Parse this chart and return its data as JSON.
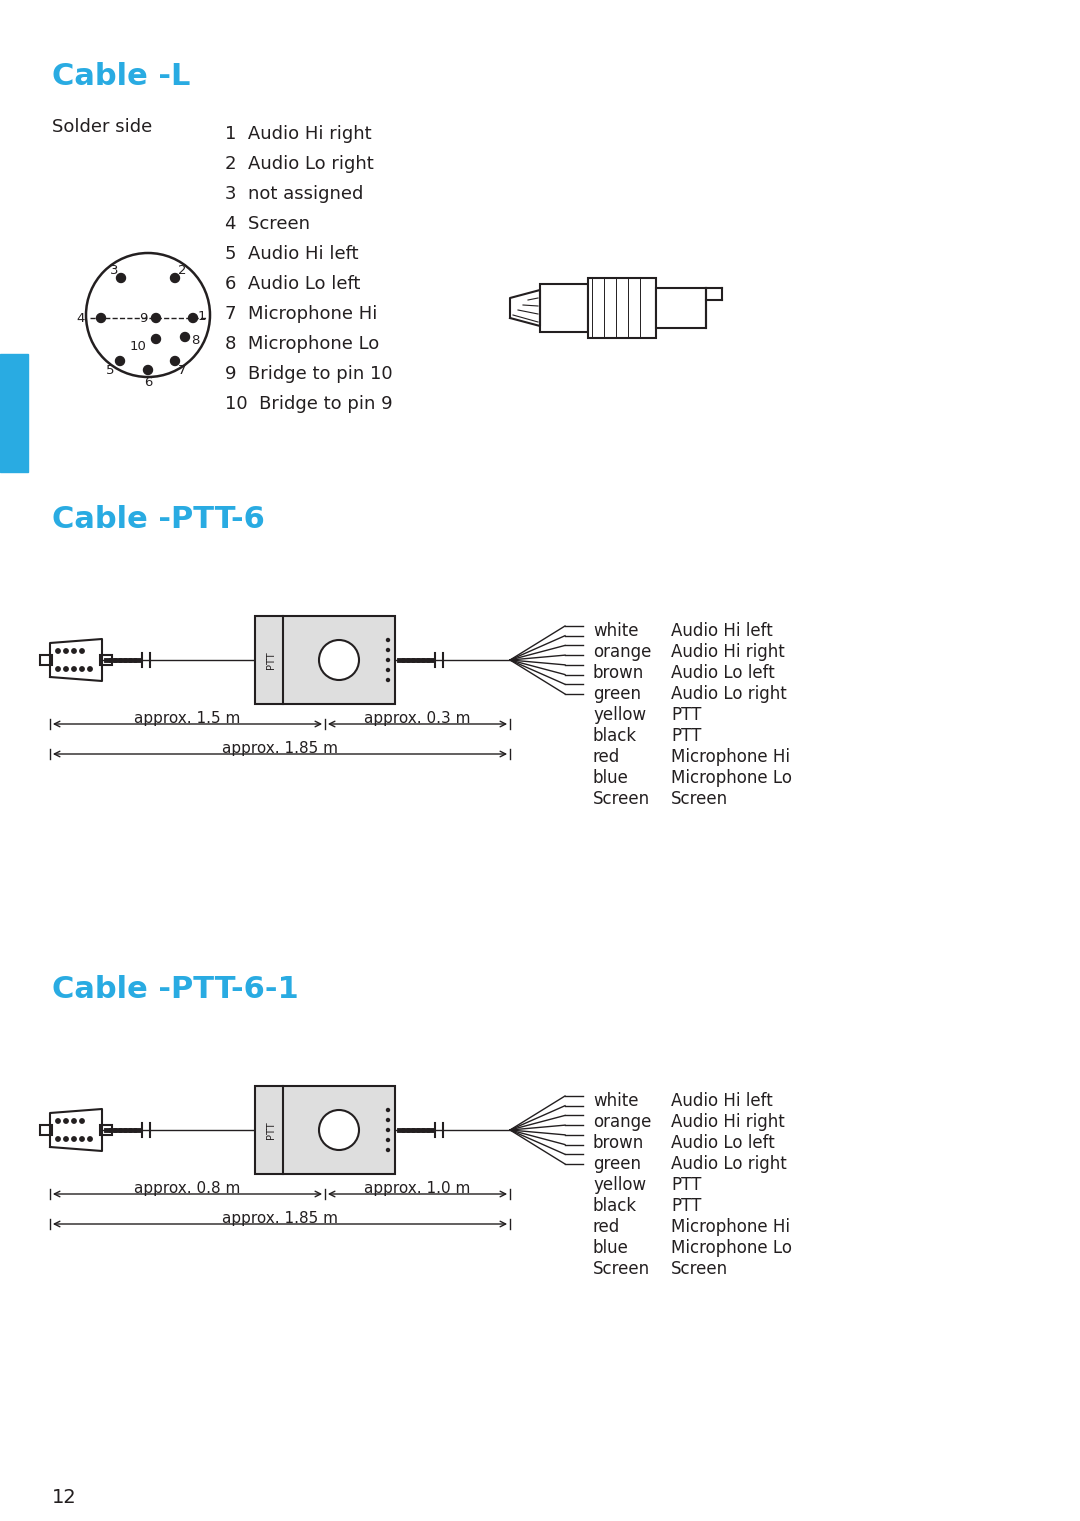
{
  "bg_color": "#ffffff",
  "cyan_color": "#29ABE2",
  "text_color": "#231F20",
  "section1_title": "Cable -L",
  "section2_title": "Cable -PTT-6",
  "section3_title": "Cable -PTT-6-1",
  "solder_side_label": "Solder side",
  "pin_labels": [
    "1  Audio Hi right",
    "2  Audio Lo right",
    "3  not assigned",
    "4  Screen",
    "5  Audio Hi left",
    "6  Audio Lo left",
    "7  Microphone Hi",
    "8  Microphone Lo",
    "9  Bridge to pin 10",
    "10  Bridge to pin 9"
  ],
  "wire_colors_ptt6": [
    [
      "white",
      "Audio Hi left"
    ],
    [
      "orange",
      "Audio Hi right"
    ],
    [
      "brown",
      "Audio Lo left"
    ],
    [
      "green",
      "Audio Lo right"
    ],
    [
      "yellow",
      "PTT"
    ],
    [
      "black",
      "PTT"
    ],
    [
      "red",
      "Microphone Hi"
    ],
    [
      "blue",
      "Microphone Lo"
    ],
    [
      "Screen",
      "Screen"
    ]
  ],
  "ptt6_measurements": [
    "approx. 1.5 m",
    "approx. 0.3 m",
    "approx. 1.85 m"
  ],
  "ptt6_1_measurements": [
    "approx. 0.8 m",
    "approx. 1.0 m",
    "approx. 1.85 m"
  ],
  "page_number": "12"
}
